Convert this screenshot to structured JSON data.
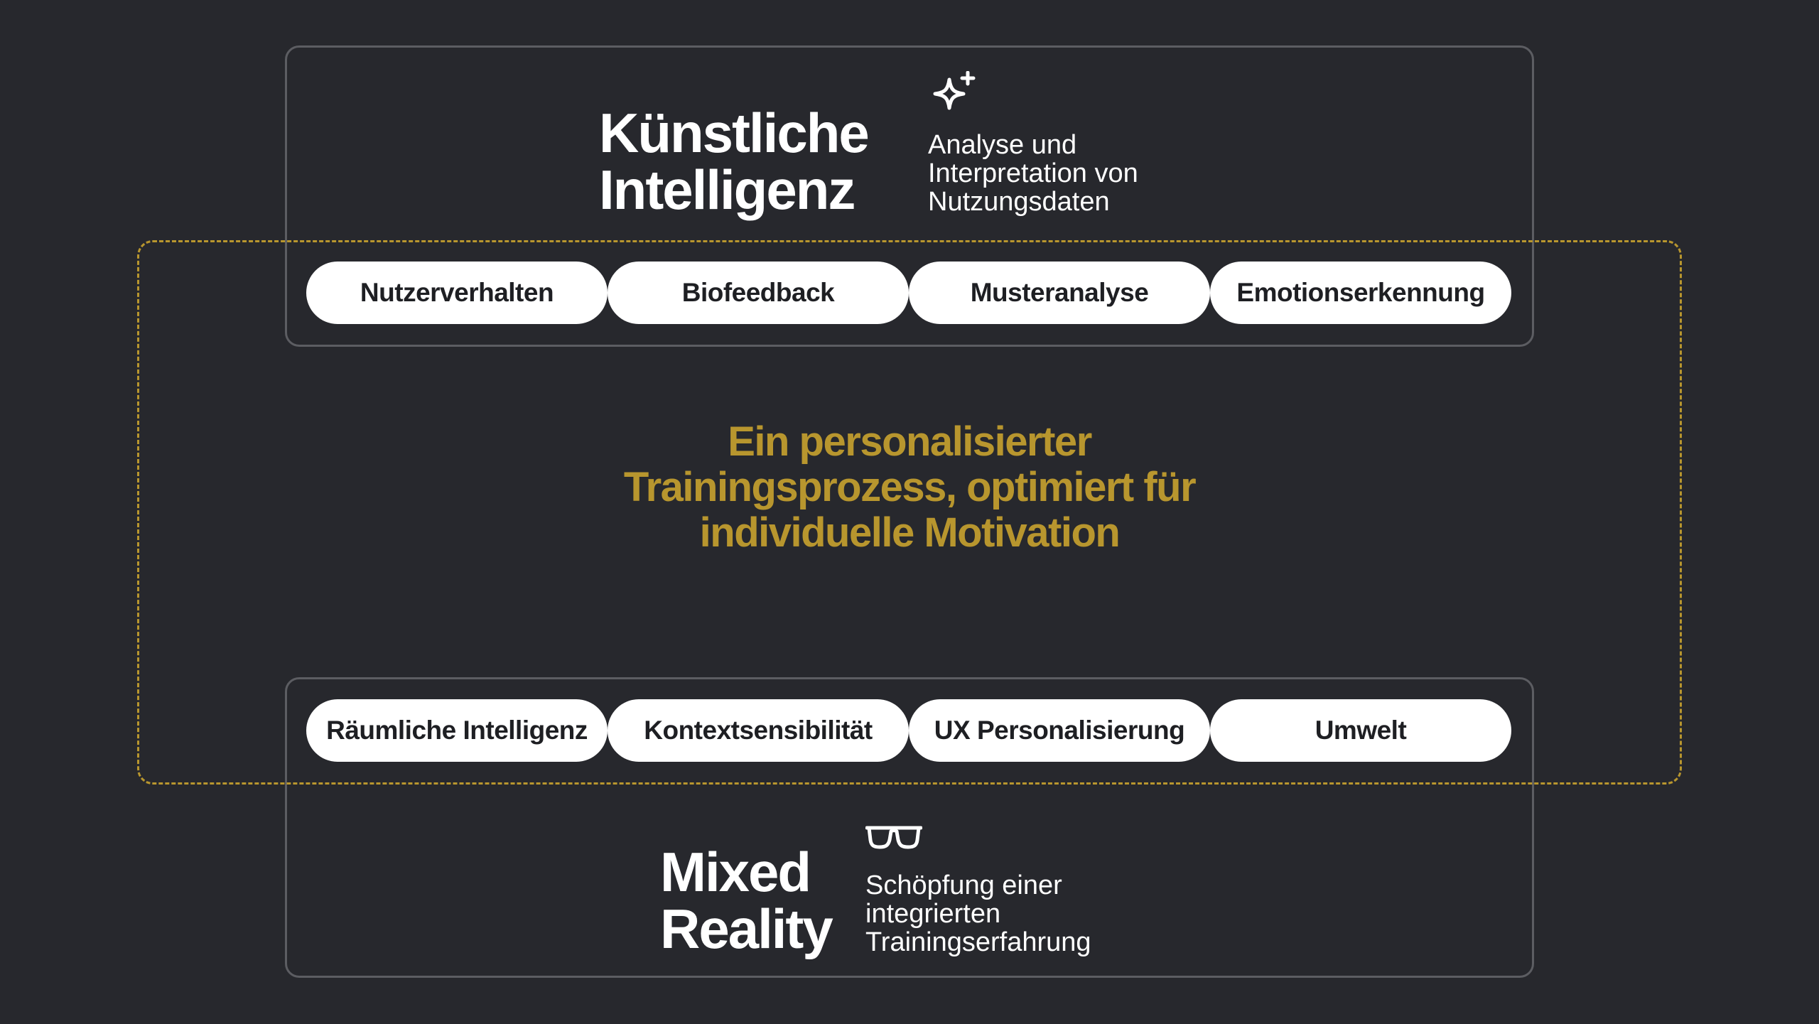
{
  "ai": {
    "title_line1": "Künstliche",
    "title_line2": "Intelligenz",
    "icon": "sparkle-icon",
    "description_line1": "Analyse und",
    "description_line2": "Interpretation von",
    "description_line3": "Nutzungsdaten",
    "tags": [
      "Nutzerverhalten",
      "Biofeedback",
      "Musteranalyse",
      "Emotionserkennung"
    ]
  },
  "center": {
    "line1": "Ein personalisierter",
    "line2": "Trainingsprozess, optimiert für",
    "line3": "individuelle Motivation"
  },
  "mr": {
    "title_line1": "Mixed",
    "title_line2": "Reality",
    "icon": "glasses-icon",
    "description_line1": "Schöpfung einer",
    "description_line2": "integrierten",
    "description_line3": "Trainingserfahrung",
    "tags": [
      "Räumliche Intelligenz",
      "Kontextsensibilität",
      "UX Personalisierung",
      "Umwelt"
    ]
  },
  "colors": {
    "background": "#27282d",
    "accent": "#b8962e",
    "box_border": "#5c5d62",
    "pill_bg": "#ffffff",
    "pill_text": "#1e1f23"
  }
}
